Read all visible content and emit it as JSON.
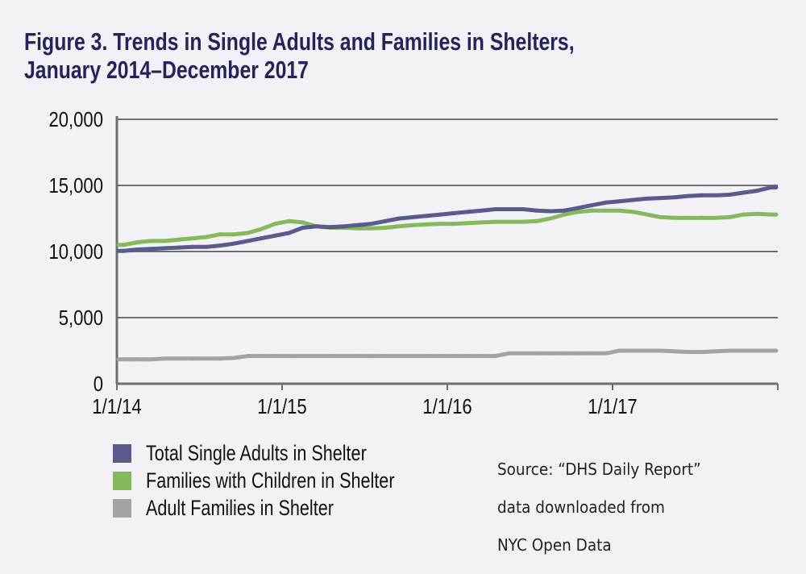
{
  "chart_data": {
    "type": "line",
    "title": "Figure 3. Trends in Single Adults and Families in Shelters,",
    "title_line2": "January 2014–December 2017",
    "xlabel": "",
    "ylabel": "",
    "ylim": [
      0,
      20000
    ],
    "yticks": [
      "20,000",
      "15,000",
      "10,000",
      "5,000",
      "0"
    ],
    "ytick_values": [
      20000,
      15000,
      10000,
      5000,
      0
    ],
    "xticks": [
      "1/1/14",
      "1/1/15",
      "1/1/16",
      "1/1/17"
    ],
    "xlim": [
      "2014-01",
      "2017-12"
    ],
    "grid": "horizontal",
    "legend_position": "bottom-left",
    "x": [
      "2014-01",
      "2014-02",
      "2014-03",
      "2014-04",
      "2014-05",
      "2014-06",
      "2014-07",
      "2014-08",
      "2014-09",
      "2014-10",
      "2014-11",
      "2014-12",
      "2015-01",
      "2015-02",
      "2015-03",
      "2015-04",
      "2015-05",
      "2015-06",
      "2015-07",
      "2015-08",
      "2015-09",
      "2015-10",
      "2015-11",
      "2015-12",
      "2016-01",
      "2016-02",
      "2016-03",
      "2016-04",
      "2016-05",
      "2016-06",
      "2016-07",
      "2016-08",
      "2016-09",
      "2016-10",
      "2016-11",
      "2016-12",
      "2017-01",
      "2017-02",
      "2017-03",
      "2017-04",
      "2017-05",
      "2017-06",
      "2017-07",
      "2017-08",
      "2017-09",
      "2017-10",
      "2017-11",
      "2017-12"
    ],
    "series": [
      {
        "name": "Total Single Adults in Shelter",
        "color": "#5a5a8c",
        "values": [
          10050,
          10150,
          10200,
          10250,
          10300,
          10350,
          10350,
          10450,
          10600,
          10800,
          11000,
          11200,
          11400,
          11800,
          11900,
          11850,
          11900,
          12000,
          12100,
          12300,
          12500,
          12600,
          12700,
          12800,
          12900,
          13000,
          13100,
          13200,
          13200,
          13200,
          13100,
          13050,
          13100,
          13300,
          13500,
          13700,
          13800,
          13900,
          14000,
          14050,
          14100,
          14200,
          14250,
          14250,
          14300,
          14450,
          14600,
          14850
        ]
      },
      {
        "name": "Families with Children in Shelter",
        "color": "#85ba5c",
        "values": [
          10500,
          10700,
          10800,
          10800,
          10900,
          11000,
          11100,
          11300,
          11300,
          11400,
          11700,
          12100,
          12300,
          12200,
          11900,
          11800,
          11800,
          11750,
          11750,
          11800,
          11900,
          12000,
          12050,
          12100,
          12100,
          12150,
          12200,
          12250,
          12250,
          12250,
          12300,
          12500,
          12800,
          13000,
          13100,
          13100,
          13100,
          13000,
          12800,
          12600,
          12550,
          12550,
          12550,
          12550,
          12600,
          12800,
          12850,
          12800
        ]
      },
      {
        "name": "Adult Families in Shelter",
        "color": "#a3a3a3",
        "values": [
          1850,
          1850,
          1850,
          1900,
          1900,
          1900,
          1900,
          1900,
          1950,
          2100,
          2100,
          2100,
          2100,
          2100,
          2100,
          2100,
          2100,
          2100,
          2100,
          2100,
          2100,
          2100,
          2100,
          2100,
          2100,
          2100,
          2100,
          2100,
          2300,
          2300,
          2300,
          2300,
          2300,
          2300,
          2300,
          2300,
          2500,
          2500,
          2500,
          2500,
          2450,
          2400,
          2400,
          2450,
          2500,
          2500,
          2500,
          2500
        ]
      }
    ],
    "annotation": [
      "Source: “DHS Daily Report”",
      "data downloaded from",
      "NYC Open Data"
    ]
  }
}
